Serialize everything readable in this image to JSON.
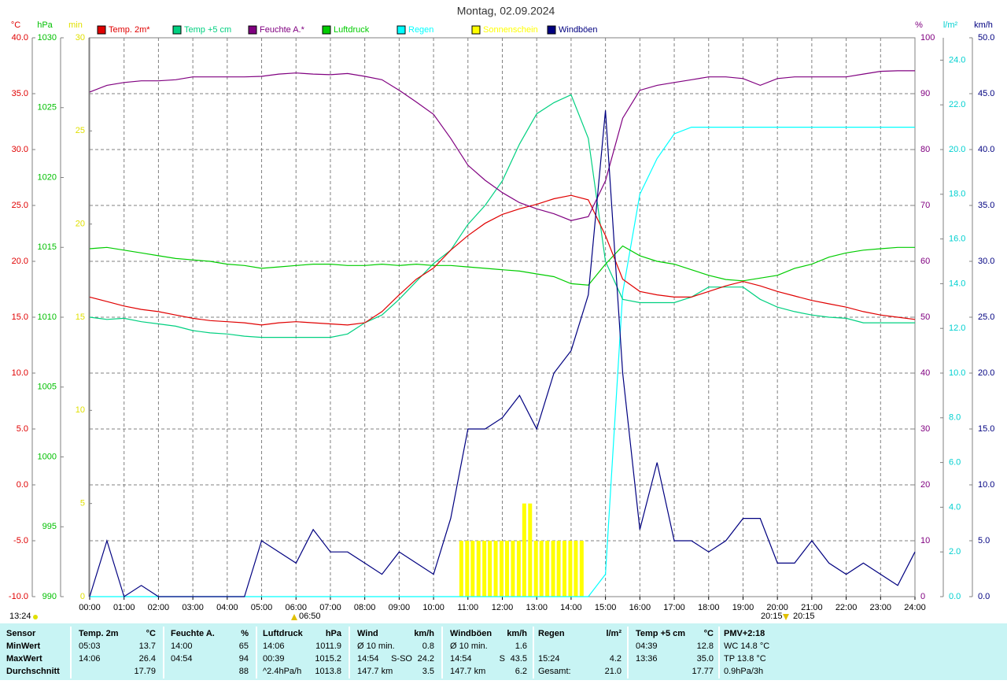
{
  "chart_data": {
    "type": "line",
    "title": "Montag, 02.09.2024",
    "xlim": [
      0,
      24
    ],
    "xticks": [
      {
        "value": 0,
        "label": "00:00"
      },
      {
        "value": 1,
        "label": "01:00"
      },
      {
        "value": 2,
        "label": "02:00"
      },
      {
        "value": 3,
        "label": "03:00"
      },
      {
        "value": 4,
        "label": "04:00"
      },
      {
        "value": 5,
        "label": "05:00"
      },
      {
        "value": 6,
        "label": "06:00"
      },
      {
        "value": 7,
        "label": "07:00"
      },
      {
        "value": 8,
        "label": "08:00"
      },
      {
        "value": 9,
        "label": "09:00"
      },
      {
        "value": 10,
        "label": "10:00"
      },
      {
        "value": 11,
        "label": "11:00"
      },
      {
        "value": 12,
        "label": "12:00"
      },
      {
        "value": 13,
        "label": "13:00"
      },
      {
        "value": 14,
        "label": "14:00"
      },
      {
        "value": 15,
        "label": "15:00"
      },
      {
        "value": 16,
        "label": "16:00"
      },
      {
        "value": 17,
        "label": "17:00"
      },
      {
        "value": 18,
        "label": "18:00"
      },
      {
        "value": 19,
        "label": "19:00"
      },
      {
        "value": 20,
        "label": "20:00"
      },
      {
        "value": 21,
        "label": "21:00"
      },
      {
        "value": 22,
        "label": "22:00"
      },
      {
        "value": 23,
        "label": "23:00"
      },
      {
        "value": 24,
        "label": "24:00"
      }
    ],
    "grid": true,
    "axes": [
      {
        "label": "°C",
        "side": "left",
        "color": "#e00000",
        "ylim": [
          -10,
          40
        ],
        "yticks": [
          {
            "value": -10,
            "label": "-10.0"
          },
          {
            "value": -5,
            "label": "-5.0"
          },
          {
            "value": 0,
            "label": "0.0"
          },
          {
            "value": 5,
            "label": "5.0"
          },
          {
            "value": 10,
            "label": "10.0"
          },
          {
            "value": 15,
            "label": "15.0"
          },
          {
            "value": 20,
            "label": "20.0"
          },
          {
            "value": 25,
            "label": "25.0"
          },
          {
            "value": 30,
            "label": "30.0"
          },
          {
            "value": 35,
            "label": "35.0"
          },
          {
            "value": 40,
            "label": "40.0"
          }
        ]
      },
      {
        "label": "hPa",
        "side": "left",
        "color": "#00c000",
        "ylim": [
          990,
          1030
        ],
        "yticks": [
          990,
          995,
          1000,
          1005,
          1010,
          1015,
          1020,
          1025,
          1030
        ]
      },
      {
        "label": "min",
        "side": "left",
        "color": "#e0e000",
        "ylim": [
          0,
          30
        ],
        "yticks": [
          0,
          5,
          10,
          15,
          20,
          25,
          30
        ]
      },
      {
        "label": "%",
        "side": "right",
        "color": "#800080",
        "ylim": [
          0,
          100
        ],
        "yticks": [
          0,
          10,
          20,
          30,
          40,
          50,
          60,
          70,
          80,
          90,
          100
        ]
      },
      {
        "label": "l/m²",
        "side": "right",
        "color": "#00d0d0",
        "ylim": [
          0,
          25
        ],
        "yticks": [
          {
            "value": 0,
            "label": "0.0"
          },
          {
            "value": 2,
            "label": "2.0"
          },
          {
            "value": 4,
            "label": "4.0"
          },
          {
            "value": 6,
            "label": "6.0"
          },
          {
            "value": 8,
            "label": "8.0"
          },
          {
            "value": 10,
            "label": "10.0"
          },
          {
            "value": 12,
            "label": "12.0"
          },
          {
            "value": 14,
            "label": "14.0"
          },
          {
            "value": 16,
            "label": "16.0"
          },
          {
            "value": 18,
            "label": "18.0"
          },
          {
            "value": 20,
            "label": "20.0"
          },
          {
            "value": 22,
            "label": "22.0"
          },
          {
            "value": 24,
            "label": "24.0"
          }
        ]
      },
      {
        "label": "km/h",
        "side": "right",
        "color": "#000080",
        "ylim": [
          0,
          50
        ],
        "yticks": [
          {
            "value": 0,
            "label": "0.0"
          },
          {
            "value": 5,
            "label": "5.0"
          },
          {
            "value": 10,
            "label": "10.0"
          },
          {
            "value": 15,
            "label": "15.0"
          },
          {
            "value": 20,
            "label": "20.0"
          },
          {
            "value": 25,
            "label": "25.0"
          },
          {
            "value": 30,
            "label": "30.0"
          },
          {
            "value": 35,
            "label": "35.0"
          },
          {
            "value": 40,
            "label": "40.0"
          },
          {
            "value": 45,
            "label": "45.0"
          },
          {
            "value": 50,
            "label": "50.0"
          }
        ]
      }
    ],
    "x": [
      0,
      0.5,
      1,
      1.5,
      2,
      2.5,
      3,
      3.5,
      4,
      4.5,
      5,
      5.5,
      6,
      6.5,
      7,
      7.5,
      8,
      8.5,
      9,
      9.5,
      10,
      10.5,
      11,
      11.5,
      12,
      12.5,
      13,
      13.5,
      14,
      14.5,
      15,
      15.5,
      16,
      16.5,
      17,
      17.5,
      18,
      18.5,
      19,
      19.5,
      20,
      20.5,
      21,
      21.5,
      22,
      22.5,
      23,
      23.5,
      24
    ],
    "series": [
      {
        "name": "Temp. 2m*",
        "color": "#e00000",
        "axis": 0,
        "values": [
          16.8,
          16.4,
          16.0,
          15.7,
          15.5,
          15.2,
          14.9,
          14.7,
          14.6,
          14.5,
          14.3,
          14.5,
          14.6,
          14.5,
          14.4,
          14.3,
          14.5,
          15.5,
          17.0,
          18.4,
          19.4,
          21.0,
          22.3,
          23.4,
          24.2,
          24.7,
          25.1,
          25.6,
          25.9,
          25.5,
          22.3,
          18.4,
          17.3,
          17.0,
          16.8,
          16.8,
          17.3,
          17.8,
          18.2,
          17.8,
          17.3,
          16.9,
          16.5,
          16.2,
          15.9,
          15.5,
          15.2,
          15.0,
          14.8
        ]
      },
      {
        "name": "Temp +5 cm",
        "color": "#00d080",
        "axis": 0,
        "values": [
          15.0,
          14.8,
          14.9,
          14.6,
          14.4,
          14.2,
          13.8,
          13.6,
          13.5,
          13.3,
          13.2,
          13.2,
          13.2,
          13.2,
          13.2,
          13.5,
          14.5,
          15.2,
          16.6,
          18.2,
          19.8,
          21.0,
          23.3,
          25.0,
          27.2,
          30.5,
          33.2,
          34.2,
          34.9,
          31.0,
          20.0,
          16.6,
          16.3,
          16.3,
          16.3,
          16.8,
          17.7,
          17.7,
          17.7,
          16.6,
          15.9,
          15.5,
          15.2,
          15.0,
          14.9,
          14.5,
          14.5,
          14.5,
          14.5
        ]
      },
      {
        "name": "Feuchte A.*",
        "color": "#800080",
        "axis": 3,
        "values": [
          90.3,
          91.5,
          92,
          92.3,
          92.3,
          92.5,
          93,
          93,
          93,
          93,
          93.1,
          93.5,
          93.7,
          93.5,
          93.4,
          93.6,
          93.1,
          92.5,
          90.6,
          88.5,
          86.3,
          82,
          77.2,
          74.5,
          72.3,
          70.5,
          69.4,
          68.5,
          67.3,
          68,
          74.4,
          85.6,
          90.6,
          91.5,
          92,
          92.5,
          93,
          93,
          92.7,
          91.5,
          92.7,
          93,
          93,
          93,
          93,
          93.5,
          94,
          94.1,
          94.1
        ]
      },
      {
        "name": "Luftdruck",
        "color": "#00cc00",
        "axis": 1,
        "values": [
          1014.9,
          1015.0,
          1014.8,
          1014.6,
          1014.4,
          1014.2,
          1014.1,
          1014.0,
          1013.8,
          1013.7,
          1013.5,
          1013.6,
          1013.7,
          1013.8,
          1013.8,
          1013.7,
          1013.7,
          1013.8,
          1013.7,
          1013.8,
          1013.7,
          1013.7,
          1013.6,
          1013.5,
          1013.4,
          1013.3,
          1013.1,
          1012.9,
          1012.4,
          1012.3,
          1013.8,
          1015.1,
          1014.4,
          1014.0,
          1013.8,
          1013.4,
          1013.0,
          1012.7,
          1012.6,
          1012.8,
          1013.0,
          1013.5,
          1013.8,
          1014.3,
          1014.6,
          1014.8,
          1014.9,
          1015.0,
          1015.0
        ]
      },
      {
        "name": "Regen",
        "color": "#00ffff",
        "axis": 4,
        "values": [
          0,
          0,
          0,
          0,
          0,
          0,
          0,
          0,
          0,
          0,
          0,
          0,
          0,
          0,
          0,
          0,
          0,
          0,
          0,
          0,
          0,
          0,
          0,
          0,
          0,
          0,
          0,
          0,
          0,
          0,
          1.0,
          13.6,
          18.0,
          19.6,
          20.7,
          21.0,
          21.0,
          21.0,
          21.0,
          21.0,
          21.0,
          21.0,
          21.0,
          21.0,
          21.0,
          21.0,
          21.0,
          21.0,
          21.0
        ]
      },
      {
        "name": "Sonnenschein",
        "color": "#ffff00",
        "axis": 2,
        "type": "bar",
        "x": [
          10.75,
          10.92,
          11.08,
          11.25,
          11.42,
          11.58,
          11.75,
          11.92,
          12.08,
          12.25,
          12.42,
          12.58,
          12.75,
          12.92,
          13.08,
          13.25,
          13.42,
          13.58,
          13.75,
          13.92,
          14.08,
          14.25
        ],
        "values": [
          3,
          3,
          3,
          3,
          3,
          3,
          3,
          3,
          3,
          3,
          3,
          5,
          5,
          3,
          3,
          3,
          3,
          3,
          3,
          3,
          3,
          3
        ]
      },
      {
        "name": "Windböen",
        "color": "#000080",
        "axis": 5,
        "values": [
          0,
          5,
          0,
          1,
          0,
          0,
          0,
          0,
          0,
          0,
          5,
          4,
          3,
          6,
          4,
          4,
          3,
          2,
          4,
          3,
          2,
          7,
          15,
          15,
          16,
          18,
          15,
          20,
          22,
          27,
          43.5,
          20,
          6,
          12,
          5,
          5,
          4,
          5,
          7,
          7,
          3,
          3,
          5,
          3,
          2,
          3,
          2,
          1,
          4
        ]
      }
    ],
    "annotations": [
      "13:24",
      "06:50",
      "20:15",
      "20:15"
    ]
  },
  "stats_table": {
    "rows": [
      {
        "sensor": "Sensor",
        "temp2m": [
          "Temp. 2m",
          "°C"
        ],
        "humidity": [
          "Feuchte A.",
          "%"
        ],
        "pressure": [
          "Luftdruck",
          "hPa"
        ],
        "wind": [
          "Wind",
          "km/h"
        ],
        "gust": [
          "Windböen",
          "km/h"
        ],
        "rain": [
          "Regen",
          "l/m²"
        ],
        "soil": [
          "Temp +5 cm",
          "°C"
        ],
        "pmv": [
          "PMV+2:18"
        ]
      },
      {
        "sensor": "MinWert",
        "temp2m": [
          "05:03",
          "13.7"
        ],
        "humidity": [
          "14:00",
          "65"
        ],
        "pressure": [
          "14:06",
          "1011.9"
        ],
        "wind": [
          "Ø 10 min.",
          "0.8"
        ],
        "gust": [
          "Ø 10 min.",
          "1.6"
        ],
        "soil": [
          "04:39",
          "12.8"
        ],
        "pmv": [
          "WC 14.8 °C"
        ]
      },
      {
        "sensor": "MaxWert",
        "temp2m": [
          "14:06",
          "26.4"
        ],
        "humidity": [
          "04:54",
          "94"
        ],
        "pressure": [
          "00:39",
          "1015.2"
        ],
        "wind": [
          "14:54",
          "S-SO",
          "24.2"
        ],
        "gust": [
          "14:54",
          "S",
          "43.5"
        ],
        "rain": [
          "15:24",
          "4.2"
        ],
        "soil": [
          "13:36",
          "35.0"
        ],
        "pmv": [
          "TP 13.8 °C"
        ]
      },
      {
        "sensor": "Durchschnitt",
        "temp2m": [
          "17.79"
        ],
        "humidity": [
          "88"
        ],
        "pressure": [
          "^2.4hPa/h",
          "1013.8"
        ],
        "wind": [
          "147.7 km",
          "3.5"
        ],
        "gust": [
          "147.7 km",
          "6.2"
        ],
        "rain": [
          "Gesamt:",
          "21.0"
        ],
        "soil": [
          "17.77"
        ],
        "pmv": [
          "0.9hPa/3h"
        ]
      }
    ]
  }
}
